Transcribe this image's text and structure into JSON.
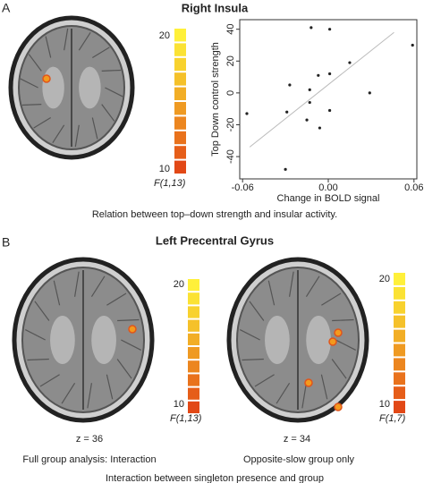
{
  "panel_a": {
    "label": "A",
    "title": "Right Insula",
    "colorbar": {
      "max": 20,
      "min": 10,
      "stat": "F(1,13)"
    },
    "caption": "Relation between top–down strength and insular activity."
  },
  "chart_data": {
    "type": "scatter",
    "ylabel": "Top Down control strength",
    "xlabel": "Change in BOLD signal",
    "x": [
      -0.012,
      0.001,
      0.059,
      0.015,
      -0.027,
      -0.007,
      0.001,
      -0.013,
      -0.013,
      0.029,
      -0.057,
      -0.029,
      0.001,
      -0.015,
      -0.006,
      -0.03
    ],
    "values": [
      41,
      40,
      30,
      19,
      5,
      11,
      12,
      2,
      -6,
      0,
      -13,
      -12,
      -11,
      -17,
      -22,
      -48
    ],
    "color": "#222222",
    "fit_line": {
      "x": [
        -0.055,
        0.046
      ],
      "y": [
        -34,
        38
      ],
      "color": "#bbbbbb"
    },
    "xlim": [
      -0.062,
      0.062
    ],
    "ylim": [
      -54,
      46
    ],
    "xticks": [
      -0.06,
      {
        "value": 0,
        "label": "0.00"
      },
      0.06
    ],
    "yticks": [
      -40,
      -20,
      0,
      20,
      40
    ]
  },
  "panel_b": {
    "label": "B",
    "title": "Left Precentral Gyrus",
    "left": {
      "colorbar": {
        "max": 20,
        "min": 10,
        "stat": "F(1,13)"
      },
      "z": "z = 36",
      "caption": "Full group analysis: Interaction"
    },
    "right": {
      "colorbar": {
        "max": 20,
        "min": 10,
        "stat": "F(1,7)"
      },
      "z": "z = 34",
      "caption": "Opposite-slow group only"
    },
    "caption": "Interaction between singleton presence and group"
  }
}
